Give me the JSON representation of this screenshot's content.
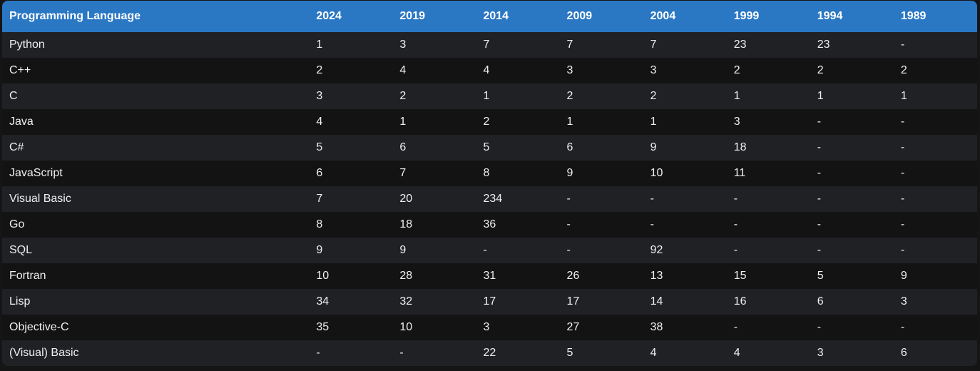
{
  "table": {
    "headers": [
      "Programming Language",
      "2024",
      "2019",
      "2014",
      "2009",
      "2004",
      "1999",
      "1994",
      "1989"
    ],
    "rows": [
      [
        "Python",
        "1",
        "3",
        "7",
        "7",
        "7",
        "23",
        "23",
        "-"
      ],
      [
        "C++",
        "2",
        "4",
        "4",
        "3",
        "3",
        "2",
        "2",
        "2"
      ],
      [
        "C",
        "3",
        "2",
        "1",
        "2",
        "2",
        "1",
        "1",
        "1"
      ],
      [
        "Java",
        "4",
        "1",
        "2",
        "1",
        "1",
        "3",
        "-",
        "-"
      ],
      [
        "C#",
        "5",
        "6",
        "5",
        "6",
        "9",
        "18",
        "-",
        "-"
      ],
      [
        "JavaScript",
        "6",
        "7",
        "8",
        "9",
        "10",
        "11",
        "-",
        "-"
      ],
      [
        "Visual Basic",
        "7",
        "20",
        "234",
        "-",
        "-",
        "-",
        "-",
        "-"
      ],
      [
        "Go",
        "8",
        "18",
        "36",
        "-",
        "-",
        "-",
        "-",
        "-"
      ],
      [
        "SQL",
        "9",
        "9",
        "-",
        "-",
        "92",
        "-",
        "-",
        "-"
      ],
      [
        "Fortran",
        "10",
        "28",
        "31",
        "26",
        "13",
        "15",
        "5",
        "9"
      ],
      [
        "Lisp",
        "34",
        "32",
        "17",
        "17",
        "14",
        "16",
        "6",
        "3"
      ],
      [
        "Objective-C",
        "35",
        "10",
        "3",
        "27",
        "38",
        "-",
        "-",
        "-"
      ],
      [
        "(Visual) Basic",
        "-",
        "-",
        "22",
        "5",
        "4",
        "4",
        "3",
        "6"
      ]
    ]
  },
  "colors": {
    "header_bg": "#2a77c4",
    "row_odd_bg": "#1f2125",
    "row_even_bg": "#131313",
    "text": "#f0f0f0"
  }
}
